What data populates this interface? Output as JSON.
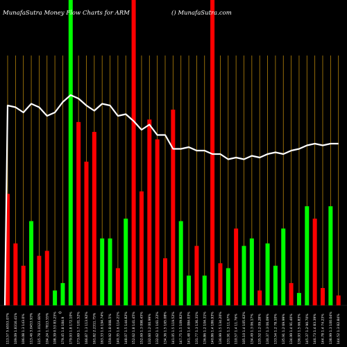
{
  "header": {
    "title": "MunafaSutra  Money Flow  Charts for ARM",
    "credit": "() MunafaSutra.com"
  },
  "colors": {
    "background": "#000000",
    "grid": "#b8860b",
    "up": "#00ff00",
    "down": "#ff0000",
    "line": "#ffffff"
  },
  "chart_data": {
    "type": "bar",
    "title": "MunafaSutra  Money Flow  Charts for ARM",
    "ylim": [
      0,
      100
    ],
    "grid": true,
    "legend": "none",
    "categories": [
      "113.57 5.6553.07%",
      "109.09 1.8316.41%",
      "106.08 1.3 143.0%",
      "113.46 3.0453.93%",
      "115.78 1.0123.60%",
      "104.24 1.7813.55%",
      "108.39 0.53 83.25%",
      "179.45 1.8 184.9",
      "179.93 1.8 172.10%",
      "173.69 1.7 101.52%",
      "166.87 1.3 113.92%",
      "161.82 2.2311.75%",
      "163.33 1.6 194.74%",
      "159.92 1.8 008.5%",
      "140.35 1.6 114.21%",
      "148.07 1.5 144.82%",
      "152.62 1.8 141.45%",
      "152.69 1.3 098.45%",
      "132.60 1.2 00.99%",
      "132.62 1.1 161.22%",
      "134.36 1.5 165.08%",
      "141.05 1.5 119.52%",
      "147.75 1.5 109.82%",
      "141.48 1.4 084.03%",
      "131.77 1.3 136.31%",
      "136.86 1.2 104.31%",
      "140.86 1.4 186.93%",
      "136.99 1.5 134.20%",
      "131.91 1.3 11.67%",
      "110.57 1.4 11.76%",
      "105.10 1.4 105.62%",
      "134.49 1.3 06.17%",
      "135.52 1.2 09.28%",
      "130.37 1.3 06.09%",
      "133.54 1.2 78.10%",
      "135.91 1.2 69.99%",
      "134.99 1.4 91.40%",
      "136.93 1.5 66.83%",
      "145.37 1.2 90.70%",
      "146.73 1.4 83.39%",
      "144.78 1.4 74.23%",
      "138.99 1.3 100.04%",
      "144.52 1.3 82.84%"
    ],
    "colors": [
      "red",
      "red",
      "red",
      "green",
      "red",
      "red",
      "green",
      "green",
      "green",
      "red",
      "red",
      "red",
      "green",
      "green",
      "red",
      "green",
      "red",
      "red",
      "red",
      "red",
      "red",
      "red",
      "green",
      "green",
      "red",
      "green",
      "red",
      "red",
      "green",
      "red",
      "green",
      "green",
      "red",
      "green",
      "green",
      "green",
      "red",
      "green",
      "green",
      "red",
      "red",
      "green",
      "red"
    ],
    "values": [
      45,
      25,
      16,
      34,
      20,
      22,
      6,
      9,
      100,
      74,
      58,
      70,
      27,
      27,
      15,
      35,
      100,
      46,
      75,
      67,
      19,
      79,
      34,
      12,
      24,
      12,
      100,
      17,
      15,
      31,
      24,
      27,
      6,
      25,
      16,
      31,
      9,
      5,
      40,
      35,
      7,
      40,
      4
    ],
    "line": {
      "name": "",
      "values": [
        86,
        85,
        82,
        87,
        85,
        80,
        82,
        88,
        92,
        90,
        86,
        83,
        87,
        86,
        80,
        81,
        77,
        72,
        75,
        69,
        69,
        61,
        61,
        62,
        60,
        60,
        58,
        58,
        55,
        56,
        55,
        57,
        56,
        58,
        59,
        58,
        60,
        61,
        63,
        64,
        63,
        64,
        64
      ],
      "start": 7,
      "ylim": [
        40,
        100
      ]
    },
    "x_axis_note": "0"
  }
}
